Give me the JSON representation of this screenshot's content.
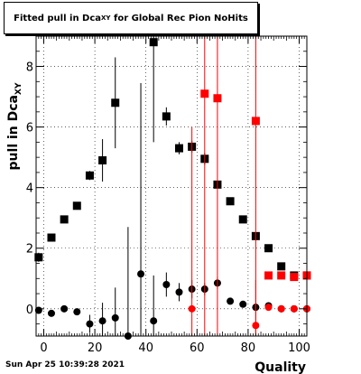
{
  "title": {
    "main": "Fitted pull in Dca",
    "sub": "XY",
    "rest": " for Global Rec Pion NoHits"
  },
  "timestamp": "Sun Apr 25 10:39:28 2021",
  "chart_data": {
    "type": "scatter",
    "title": "Fitted pull in Dca_XY for Global Rec Pion NoHits",
    "xlabel": "Quality",
    "ylabel": "pull in Dca_XY",
    "xlim": [
      -3,
      103
    ],
    "ylim": [
      -0.9,
      9.0
    ],
    "x_ticks": [
      0,
      20,
      40,
      60,
      80,
      100
    ],
    "y_ticks": [
      0,
      2,
      4,
      6,
      8
    ],
    "grid": true,
    "series": [
      {
        "color": "#000000",
        "marker": "square",
        "points": [
          {
            "x": -2,
            "y": 1.7,
            "err": 0.15
          },
          {
            "x": 3,
            "y": 2.35,
            "err": 0.1
          },
          {
            "x": 8,
            "y": 2.95,
            "err": 0.1
          },
          {
            "x": 13,
            "y": 3.4,
            "err": 0.1
          },
          {
            "x": 18,
            "y": 4.4,
            "err": 0.15
          },
          {
            "x": 23,
            "y": 4.9,
            "err": 0.7
          },
          {
            "x": 28,
            "y": 6.8,
            "err": 1.5
          },
          {
            "x": 43,
            "y": 8.8,
            "err": 3.3
          },
          {
            "x": 48,
            "y": 6.35,
            "err": 0.3
          },
          {
            "x": 53,
            "y": 5.3,
            "err": 0.2
          },
          {
            "x": 58,
            "y": 5.35,
            "err": 0.2
          },
          {
            "x": 63,
            "y": 4.95,
            "err": 0.2
          },
          {
            "x": 68,
            "y": 4.1,
            "err": 0.1
          },
          {
            "x": 73,
            "y": 3.55,
            "err": 0.1
          },
          {
            "x": 78,
            "y": 2.95,
            "err": 0.1
          },
          {
            "x": 83,
            "y": 2.4,
            "err": 0.05
          },
          {
            "x": 88,
            "y": 2.0,
            "err": 0.05
          },
          {
            "x": 93,
            "y": 1.4,
            "err": 0.05
          },
          {
            "x": 98,
            "y": 1.1,
            "err": 0.05
          },
          {
            "x": 103,
            "y": 1.1,
            "err": 0.05
          }
        ]
      },
      {
        "color": "#000000",
        "marker": "circle",
        "points": [
          {
            "x": -2,
            "y": -0.05,
            "err": 0.1
          },
          {
            "x": 3,
            "y": -0.15,
            "err": 0.1
          },
          {
            "x": 8,
            "y": 0.0,
            "err": 0.1
          },
          {
            "x": 13,
            "y": -0.1,
            "err": 0.1
          },
          {
            "x": 18,
            "y": -0.5,
            "err": 0.3
          },
          {
            "x": 23,
            "y": -0.4,
            "err": 0.6
          },
          {
            "x": 28,
            "y": -0.3,
            "err": 1.0
          },
          {
            "x": 33,
            "y": -0.9,
            "err": 3.6
          },
          {
            "x": 38,
            "y": 1.15,
            "err": 6.3
          },
          {
            "x": 43,
            "y": -0.4,
            "err": 1.5
          },
          {
            "x": 48,
            "y": 0.8,
            "err": 0.4
          },
          {
            "x": 53,
            "y": 0.55,
            "err": 0.3
          },
          {
            "x": 58,
            "y": 0.65,
            "err": 0.3
          },
          {
            "x": 63,
            "y": 0.65,
            "err": 0.2
          },
          {
            "x": 68,
            "y": 0.85,
            "err": 0.2
          },
          {
            "x": 73,
            "y": 0.25,
            "err": 0.1
          },
          {
            "x": 78,
            "y": 0.15,
            "err": 0.05
          },
          {
            "x": 83,
            "y": 0.05,
            "err": 0.05
          },
          {
            "x": 88,
            "y": 0.1,
            "err": 0.05
          },
          {
            "x": 93,
            "y": 0.0,
            "err": 0.05
          },
          {
            "x": 98,
            "y": 0.0,
            "err": 0.05
          },
          {
            "x": 103,
            "y": 0.0,
            "err": 0.05
          }
        ]
      },
      {
        "color": "#ff0000",
        "marker": "square",
        "points": [
          {
            "x": 63,
            "y": 7.1,
            "err": 8.0
          },
          {
            "x": 68,
            "y": 6.95,
            "err": 8.0
          },
          {
            "x": 83,
            "y": 6.2,
            "err": 8.0
          },
          {
            "x": 88,
            "y": 1.1,
            "err": 0.05
          },
          {
            "x": 93,
            "y": 1.1,
            "err": 0.05
          },
          {
            "x": 98,
            "y": 1.05,
            "err": 0.05
          },
          {
            "x": 103,
            "y": 1.1,
            "err": 0.05
          }
        ]
      },
      {
        "color": "#ff0000",
        "marker": "circle",
        "points": [
          {
            "x": 58,
            "y": 0.0,
            "err": 6.0
          },
          {
            "x": 83,
            "y": -0.55,
            "err": 1.5
          },
          {
            "x": 88,
            "y": 0.05,
            "err": 0.05
          },
          {
            "x": 93,
            "y": 0.0,
            "err": 0.05
          },
          {
            "x": 98,
            "y": 0.0,
            "err": 0.05
          },
          {
            "x": 103,
            "y": 0.0,
            "err": 0.05
          }
        ]
      }
    ]
  }
}
